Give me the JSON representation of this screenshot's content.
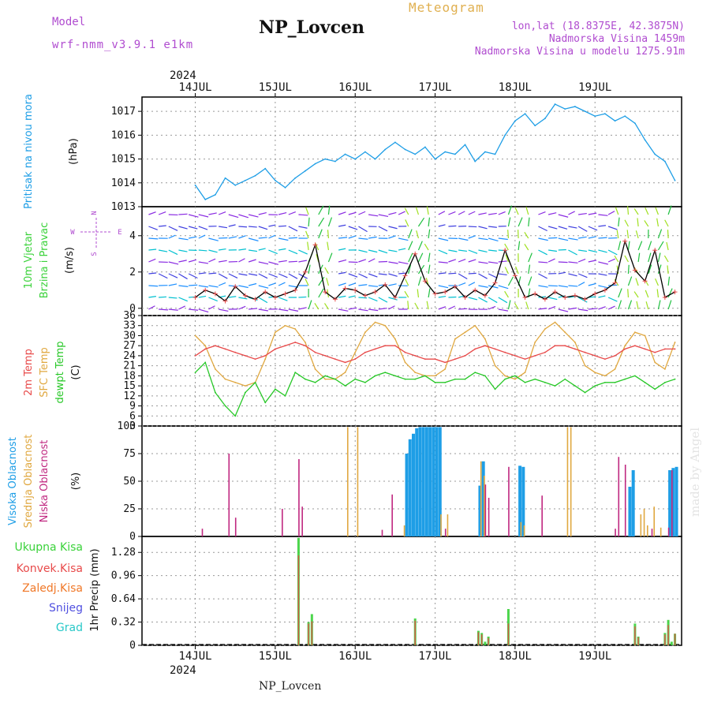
{
  "header": {
    "model_label": "Model",
    "model_name": "wrf-nmm_v3.9.1 e1km",
    "station_title": "NP_Lovcen",
    "meteogram_label": "Meteogram",
    "location": "lon,lat (18.8375E, 42.3875N)",
    "altitude": "Nadmorska Visina 1459m",
    "model_altitude": "Nadmorska Visina u modelu 1275.91m",
    "footer_station": "NP_Lovcen",
    "made_by": "made by Angel",
    "year_top": "2024",
    "year_bottom": "2024"
  },
  "colors": {
    "pressure": "#1e9ee6",
    "temp2m": "#e84a4a",
    "sfc_temp": "#e0a840",
    "dewpoint": "#28c828",
    "high_cloud": "#1e9ee6",
    "mid_cloud": "#e0a840",
    "low_cloud": "#c02880",
    "total_precip": "#3ad23a",
    "convective": "#e84a4a",
    "freezing": "#f07828",
    "snow": "#5050e0",
    "hail": "#28c8c8",
    "wind_arrows": [
      "#8a2be2",
      "#4040e0",
      "#1e90ff",
      "#00c0d0",
      "#20c040",
      "#a0e020"
    ]
  },
  "chart_data": [
    {
      "panel": "pressure",
      "type": "line",
      "ylabel_main": "Pritisak na nivou mora",
      "ylabel_unit": "(hPa)",
      "x_labels": [
        "14JUL",
        "15JUL",
        "16JUL",
        "17JUL",
        "18JUL",
        "19JUL"
      ],
      "y_ticks": [
        "1017",
        "1016",
        "1015",
        "1014",
        "1013"
      ],
      "ylim": [
        1013,
        1017.6
      ],
      "series": [
        {
          "key": "slp",
          "x": [
            0,
            3,
            6,
            9,
            12,
            15,
            18,
            21,
            24,
            27,
            30,
            33,
            36,
            39,
            42,
            45,
            48,
            51,
            54,
            57,
            60,
            63,
            66,
            69,
            72,
            75,
            78,
            81,
            84,
            87,
            90,
            93,
            96,
            99,
            102,
            105,
            108,
            111,
            114,
            117,
            120,
            123,
            126,
            129,
            132,
            135,
            138,
            141,
            144
          ],
          "values": [
            1013.9,
            1013.3,
            1013.5,
            1014.2,
            1013.9,
            1014.1,
            1014.3,
            1014.6,
            1014.1,
            1013.8,
            1014.2,
            1014.5,
            1014.8,
            1015.0,
            1014.9,
            1015.2,
            1015.0,
            1015.3,
            1015.0,
            1015.4,
            1015.7,
            1015.4,
            1015.2,
            1015.5,
            1015.0,
            1015.3,
            1015.2,
            1015.6,
            1014.9,
            1015.3,
            1015.2,
            1016.0,
            1016.6,
            1016.9,
            1016.4,
            1016.7,
            1017.3,
            1017.1,
            1017.2,
            1017.0,
            1016.8,
            1016.9,
            1016.6,
            1016.8,
            1016.5,
            1015.8,
            1015.2,
            1014.9,
            1014.1
          ]
        }
      ]
    },
    {
      "panel": "wind",
      "type": "line",
      "ylabel_main": "10m Vjetar",
      "ylabel_sub": "Brzina i Pravac",
      "ylabel_unit": "(m/s)",
      "compass": [
        "N",
        "W",
        "E",
        "S"
      ],
      "y_ticks": [
        "4",
        "2",
        "0"
      ],
      "ylim": [
        -0.4,
        5.6
      ],
      "series": [
        {
          "key": "speed",
          "x": [
            0,
            3,
            6,
            9,
            12,
            15,
            18,
            21,
            24,
            27,
            30,
            33,
            36,
            39,
            42,
            45,
            48,
            51,
            54,
            57,
            60,
            63,
            66,
            69,
            72,
            75,
            78,
            81,
            84,
            87,
            90,
            93,
            96,
            99,
            102,
            105,
            108,
            111,
            114,
            117,
            120,
            123,
            126,
            129,
            132,
            135,
            138,
            141,
            144
          ],
          "values": [
            0.6,
            1.0,
            0.8,
            0.4,
            1.2,
            0.7,
            0.5,
            0.9,
            0.6,
            0.8,
            1.0,
            2.0,
            3.5,
            0.9,
            0.5,
            1.1,
            1.0,
            0.7,
            0.9,
            1.3,
            0.6,
            1.8,
            3.0,
            1.5,
            0.8,
            0.9,
            1.2,
            0.6,
            1.0,
            0.7,
            1.4,
            3.2,
            1.8,
            0.6,
            0.8,
            0.5,
            0.9,
            0.6,
            0.7,
            0.5,
            0.8,
            1.0,
            1.4,
            3.7,
            2.1,
            1.5,
            3.2,
            0.6,
            0.9
          ]
        }
      ]
    },
    {
      "panel": "temperature",
      "type": "line",
      "labels": [
        "2m Temp",
        "SFC Temp",
        "dewpt Temp"
      ],
      "ylabel_unit": "(C)",
      "y_ticks": [
        "36",
        "33",
        "30",
        "27",
        "24",
        "21",
        "18",
        "15",
        "12",
        "9",
        "6",
        "3"
      ],
      "ylim": [
        3,
        36
      ],
      "series": [
        {
          "key": "t2m",
          "x": [
            0,
            3,
            6,
            9,
            12,
            15,
            18,
            21,
            24,
            27,
            30,
            33,
            36,
            39,
            42,
            45,
            48,
            51,
            54,
            57,
            60,
            63,
            66,
            69,
            72,
            75,
            78,
            81,
            84,
            87,
            90,
            93,
            96,
            99,
            102,
            105,
            108,
            111,
            114,
            117,
            120,
            123,
            126,
            129,
            132,
            135,
            138,
            141,
            144
          ],
          "values": [
            24,
            26,
            27,
            26,
            25,
            24,
            23,
            24,
            26,
            27,
            28,
            27,
            25,
            24,
            23,
            22,
            23,
            25,
            26,
            27,
            27,
            25,
            24,
            23,
            23,
            22,
            23,
            24,
            26,
            27,
            26,
            25,
            24,
            23,
            24,
            25,
            27,
            27,
            26,
            25,
            24,
            23,
            24,
            26,
            27,
            26,
            25,
            26,
            26
          ]
        },
        {
          "key": "tsfc",
          "x": [
            0,
            3,
            6,
            9,
            12,
            15,
            18,
            21,
            24,
            27,
            30,
            33,
            36,
            39,
            42,
            45,
            48,
            51,
            54,
            57,
            60,
            63,
            66,
            69,
            72,
            75,
            78,
            81,
            84,
            87,
            90,
            93,
            96,
            99,
            102,
            105,
            108,
            111,
            114,
            117,
            120,
            123,
            126,
            129,
            132,
            135,
            138,
            141,
            144
          ],
          "values": [
            30,
            27,
            20,
            17,
            16,
            15,
            16,
            23,
            31,
            33,
            32,
            28,
            20,
            17,
            17,
            19,
            25,
            31,
            34,
            33,
            29,
            22,
            19,
            18,
            18,
            20,
            29,
            31,
            33,
            29,
            21,
            18,
            17,
            19,
            28,
            32,
            34,
            31,
            28,
            21,
            19,
            18,
            20,
            27,
            31,
            30,
            22,
            20,
            28
          ]
        },
        {
          "key": "dewpt",
          "x": [
            0,
            3,
            6,
            9,
            12,
            15,
            18,
            21,
            24,
            27,
            30,
            33,
            36,
            39,
            42,
            45,
            48,
            51,
            54,
            57,
            60,
            63,
            66,
            69,
            72,
            75,
            78,
            81,
            84,
            87,
            90,
            93,
            96,
            99,
            102,
            105,
            108,
            111,
            114,
            117,
            120,
            123,
            126,
            129,
            132,
            135,
            138,
            141,
            144
          ],
          "values": [
            19,
            22,
            13,
            9,
            6,
            13,
            16,
            10,
            14,
            12,
            19,
            17,
            16,
            18,
            17,
            15,
            17,
            16,
            18,
            19,
            18,
            17,
            17,
            18,
            16,
            16,
            17,
            17,
            19,
            18,
            14,
            17,
            18,
            16,
            17,
            16,
            15,
            17,
            15,
            13,
            15,
            16,
            16,
            17,
            18,
            16,
            14,
            16,
            17
          ]
        }
      ]
    },
    {
      "panel": "clouds",
      "type": "bar",
      "labels": [
        "Visoka Oblacnost",
        "Srednja Oblacnost",
        "Niska Oblacnost"
      ],
      "ylabel_unit": "(%)",
      "y_ticks": [
        "100",
        "75",
        "50",
        "25",
        "0"
      ],
      "ylim": [
        0,
        100
      ],
      "series": [
        {
          "key": "high",
          "x": [
            63,
            64,
            65,
            66,
            67,
            68,
            69,
            70,
            71,
            72,
            73,
            85,
            86,
            97,
            98,
            130,
            131,
            142,
            143,
            144
          ],
          "values": [
            75,
            88,
            93,
            98,
            99,
            99,
            99,
            99,
            99,
            99,
            99,
            46,
            68,
            64,
            63,
            45,
            60,
            60,
            62,
            63
          ]
        },
        {
          "key": "mid",
          "x": [
            46,
            49,
            63,
            74,
            76,
            86,
            87,
            98,
            99,
            112,
            113,
            134,
            135,
            136,
            138,
            140
          ],
          "values": [
            99,
            99,
            10,
            20,
            20,
            68,
            55,
            13,
            10,
            99,
            99,
            20,
            25,
            10,
            27,
            8
          ]
        },
        {
          "key": "low",
          "x": [
            2,
            10,
            12,
            26,
            31,
            32,
            56,
            59,
            75,
            87,
            88,
            94,
            104,
            126,
            127,
            129,
            137,
            142,
            143
          ],
          "values": [
            7,
            75,
            17,
            25,
            70,
            27,
            6,
            38,
            7,
            47,
            35,
            63,
            37,
            7,
            72,
            65,
            7,
            8,
            60
          ]
        }
      ]
    },
    {
      "panel": "precip",
      "type": "bar",
      "labels": [
        "Ukupna Kisa",
        "Konvek.Kisa",
        "Zaledj.Kisa",
        "Snijeg",
        "Grad"
      ],
      "ylabel_unit": "1hr Precip (mm)",
      "y_ticks": [
        "1.28",
        "0.96",
        "0.64",
        "0.32",
        "0"
      ],
      "ylim": [
        0,
        1.5
      ],
      "series": [
        {
          "key": "total",
          "x": [
            31,
            34,
            35,
            66,
            85,
            86,
            87,
            88,
            94,
            132,
            133,
            141,
            142,
            143,
            144
          ],
          "values": [
            1.48,
            0.32,
            0.43,
            0.37,
            0.2,
            0.17,
            0.05,
            0.12,
            0.5,
            0.3,
            0.12,
            0.17,
            0.35,
            0.05,
            0.16
          ]
        },
        {
          "key": "convective",
          "x": [
            31,
            34,
            35,
            66,
            85,
            86,
            88,
            94,
            132,
            133,
            141,
            142,
            144
          ],
          "values": [
            1.24,
            0.3,
            0.33,
            0.34,
            0.18,
            0.15,
            0.1,
            0.3,
            0.26,
            0.11,
            0.15,
            0.28,
            0.16
          ]
        }
      ]
    }
  ]
}
